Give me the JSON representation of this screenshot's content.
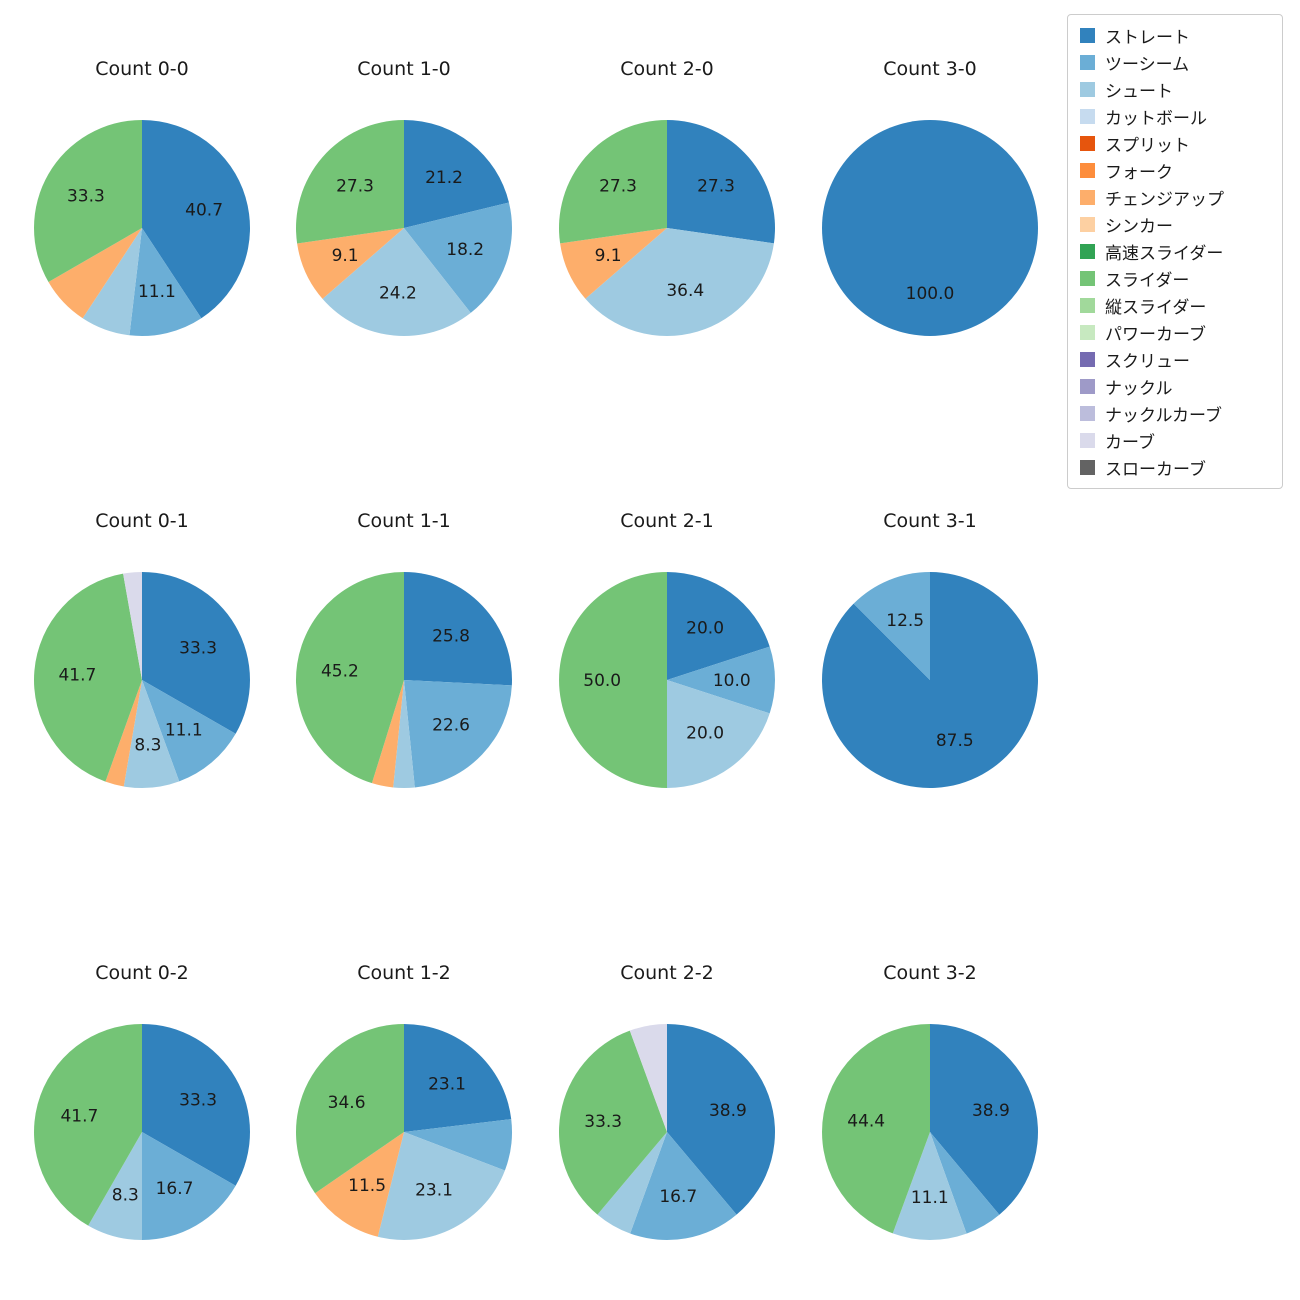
{
  "legend": {
    "items": [
      {
        "label": "ストレート",
        "color": "#3182bd"
      },
      {
        "label": "ツーシーム",
        "color": "#6baed6"
      },
      {
        "label": "シュート",
        "color": "#9ecae1"
      },
      {
        "label": "カットボール",
        "color": "#c6dbef"
      },
      {
        "label": "スプリット",
        "color": "#e6550d"
      },
      {
        "label": "フォーク",
        "color": "#fd8d3c"
      },
      {
        "label": "チェンジアップ",
        "color": "#fdae6b"
      },
      {
        "label": "シンカー",
        "color": "#fdd0a2"
      },
      {
        "label": "高速スライダー",
        "color": "#31a354"
      },
      {
        "label": "スライダー",
        "color": "#74c476"
      },
      {
        "label": "縦スライダー",
        "color": "#a1d99b"
      },
      {
        "label": "パワーカーブ",
        "color": "#c7e9c0"
      },
      {
        "label": "スクリュー",
        "color": "#756bb1"
      },
      {
        "label": "ナックル",
        "color": "#9e9ac8"
      },
      {
        "label": "ナックルカーブ",
        "color": "#bcbddc"
      },
      {
        "label": "カーブ",
        "color": "#dadaeb"
      },
      {
        "label": "スローカーブ",
        "color": "#636363"
      }
    ]
  },
  "chart_data": [
    {
      "type": "pie",
      "title": "Count 0-0",
      "start_angle": "top",
      "direction": "clockwise",
      "label_distance": 0.6,
      "slices": [
        {
          "name": "ストレート",
          "value": 40.7,
          "label": "40.7"
        },
        {
          "name": "ツーシーム",
          "value": 11.1,
          "label": "11.1"
        },
        {
          "name": "シュート",
          "value": 7.4,
          "label": null
        },
        {
          "name": "チェンジアップ",
          "value": 7.4,
          "label": null
        },
        {
          "name": "スライダー",
          "value": 33.3,
          "label": "33.3"
        }
      ]
    },
    {
      "type": "pie",
      "title": "Count 1-0",
      "start_angle": "top",
      "direction": "clockwise",
      "label_distance": 0.6,
      "slices": [
        {
          "name": "ストレート",
          "value": 21.2,
          "label": "21.2"
        },
        {
          "name": "ツーシーム",
          "value": 18.2,
          "label": "18.2"
        },
        {
          "name": "シュート",
          "value": 24.2,
          "label": "24.2"
        },
        {
          "name": "チェンジアップ",
          "value": 9.1,
          "label": "9.1"
        },
        {
          "name": "スライダー",
          "value": 27.3,
          "label": "27.3"
        }
      ]
    },
    {
      "type": "pie",
      "title": "Count 2-0",
      "start_angle": "top",
      "direction": "clockwise",
      "label_distance": 0.6,
      "slices": [
        {
          "name": "ストレート",
          "value": 27.3,
          "label": "27.3"
        },
        {
          "name": "シュート",
          "value": 36.4,
          "label": "36.4"
        },
        {
          "name": "チェンジアップ",
          "value": 9.1,
          "label": "9.1"
        },
        {
          "name": "スライダー",
          "value": 27.3,
          "label": "27.3"
        }
      ]
    },
    {
      "type": "pie",
      "title": "Count 3-0",
      "start_angle": "top",
      "direction": "clockwise",
      "label_distance": 0.6,
      "slices": [
        {
          "name": "ストレート",
          "value": 100.0,
          "label": "100.0"
        }
      ]
    },
    {
      "type": "pie",
      "title": "Count 0-1",
      "start_angle": "top",
      "direction": "clockwise",
      "label_distance": 0.6,
      "slices": [
        {
          "name": "ストレート",
          "value": 33.3,
          "label": "33.3"
        },
        {
          "name": "ツーシーム",
          "value": 11.1,
          "label": "11.1"
        },
        {
          "name": "シュート",
          "value": 8.3,
          "label": "8.3"
        },
        {
          "name": "チェンジアップ",
          "value": 2.8,
          "label": null
        },
        {
          "name": "スライダー",
          "value": 41.7,
          "label": "41.7"
        },
        {
          "name": "カーブ",
          "value": 2.8,
          "label": null
        }
      ]
    },
    {
      "type": "pie",
      "title": "Count 1-1",
      "start_angle": "top",
      "direction": "clockwise",
      "label_distance": 0.6,
      "slices": [
        {
          "name": "ストレート",
          "value": 25.8,
          "label": "25.8"
        },
        {
          "name": "ツーシーム",
          "value": 22.6,
          "label": "22.6"
        },
        {
          "name": "シュート",
          "value": 3.2,
          "label": null
        },
        {
          "name": "チェンジアップ",
          "value": 3.2,
          "label": null
        },
        {
          "name": "スライダー",
          "value": 45.2,
          "label": "45.2"
        }
      ]
    },
    {
      "type": "pie",
      "title": "Count 2-1",
      "start_angle": "top",
      "direction": "clockwise",
      "label_distance": 0.6,
      "slices": [
        {
          "name": "ストレート",
          "value": 20.0,
          "label": "20.0"
        },
        {
          "name": "ツーシーム",
          "value": 10.0,
          "label": "10.0"
        },
        {
          "name": "シュート",
          "value": 20.0,
          "label": "20.0"
        },
        {
          "name": "スライダー",
          "value": 50.0,
          "label": "50.0"
        }
      ]
    },
    {
      "type": "pie",
      "title": "Count 3-1",
      "start_angle": "top",
      "direction": "clockwise",
      "label_distance": 0.6,
      "slices": [
        {
          "name": "ストレート",
          "value": 87.5,
          "label": "87.5"
        },
        {
          "name": "ツーシーム",
          "value": 12.5,
          "label": "12.5"
        }
      ]
    },
    {
      "type": "pie",
      "title": "Count 0-2",
      "start_angle": "top",
      "direction": "clockwise",
      "label_distance": 0.6,
      "slices": [
        {
          "name": "ストレート",
          "value": 33.3,
          "label": "33.3"
        },
        {
          "name": "ツーシーム",
          "value": 16.7,
          "label": "16.7"
        },
        {
          "name": "シュート",
          "value": 8.3,
          "label": "8.3"
        },
        {
          "name": "スライダー",
          "value": 41.7,
          "label": "41.7"
        }
      ]
    },
    {
      "type": "pie",
      "title": "Count 1-2",
      "start_angle": "top",
      "direction": "clockwise",
      "label_distance": 0.6,
      "slices": [
        {
          "name": "ストレート",
          "value": 23.1,
          "label": "23.1"
        },
        {
          "name": "ツーシーム",
          "value": 7.7,
          "label": null
        },
        {
          "name": "シュート",
          "value": 23.1,
          "label": "23.1"
        },
        {
          "name": "チェンジアップ",
          "value": 11.5,
          "label": "11.5"
        },
        {
          "name": "スライダー",
          "value": 34.6,
          "label": "34.6"
        }
      ]
    },
    {
      "type": "pie",
      "title": "Count 2-2",
      "start_angle": "top",
      "direction": "clockwise",
      "label_distance": 0.6,
      "slices": [
        {
          "name": "ストレート",
          "value": 38.9,
          "label": "38.9"
        },
        {
          "name": "ツーシーム",
          "value": 16.7,
          "label": "16.7"
        },
        {
          "name": "シュート",
          "value": 5.6,
          "label": null
        },
        {
          "name": "スライダー",
          "value": 33.3,
          "label": "33.3"
        },
        {
          "name": "カーブ",
          "value": 5.6,
          "label": null
        }
      ]
    },
    {
      "type": "pie",
      "title": "Count 3-2",
      "start_angle": "top",
      "direction": "clockwise",
      "label_distance": 0.6,
      "slices": [
        {
          "name": "ストレート",
          "value": 38.9,
          "label": "38.9"
        },
        {
          "name": "ツーシーム",
          "value": 5.6,
          "label": null
        },
        {
          "name": "シュート",
          "value": 11.1,
          "label": "11.1"
        },
        {
          "name": "スライダー",
          "value": 44.4,
          "label": "44.4"
        }
      ]
    }
  ]
}
